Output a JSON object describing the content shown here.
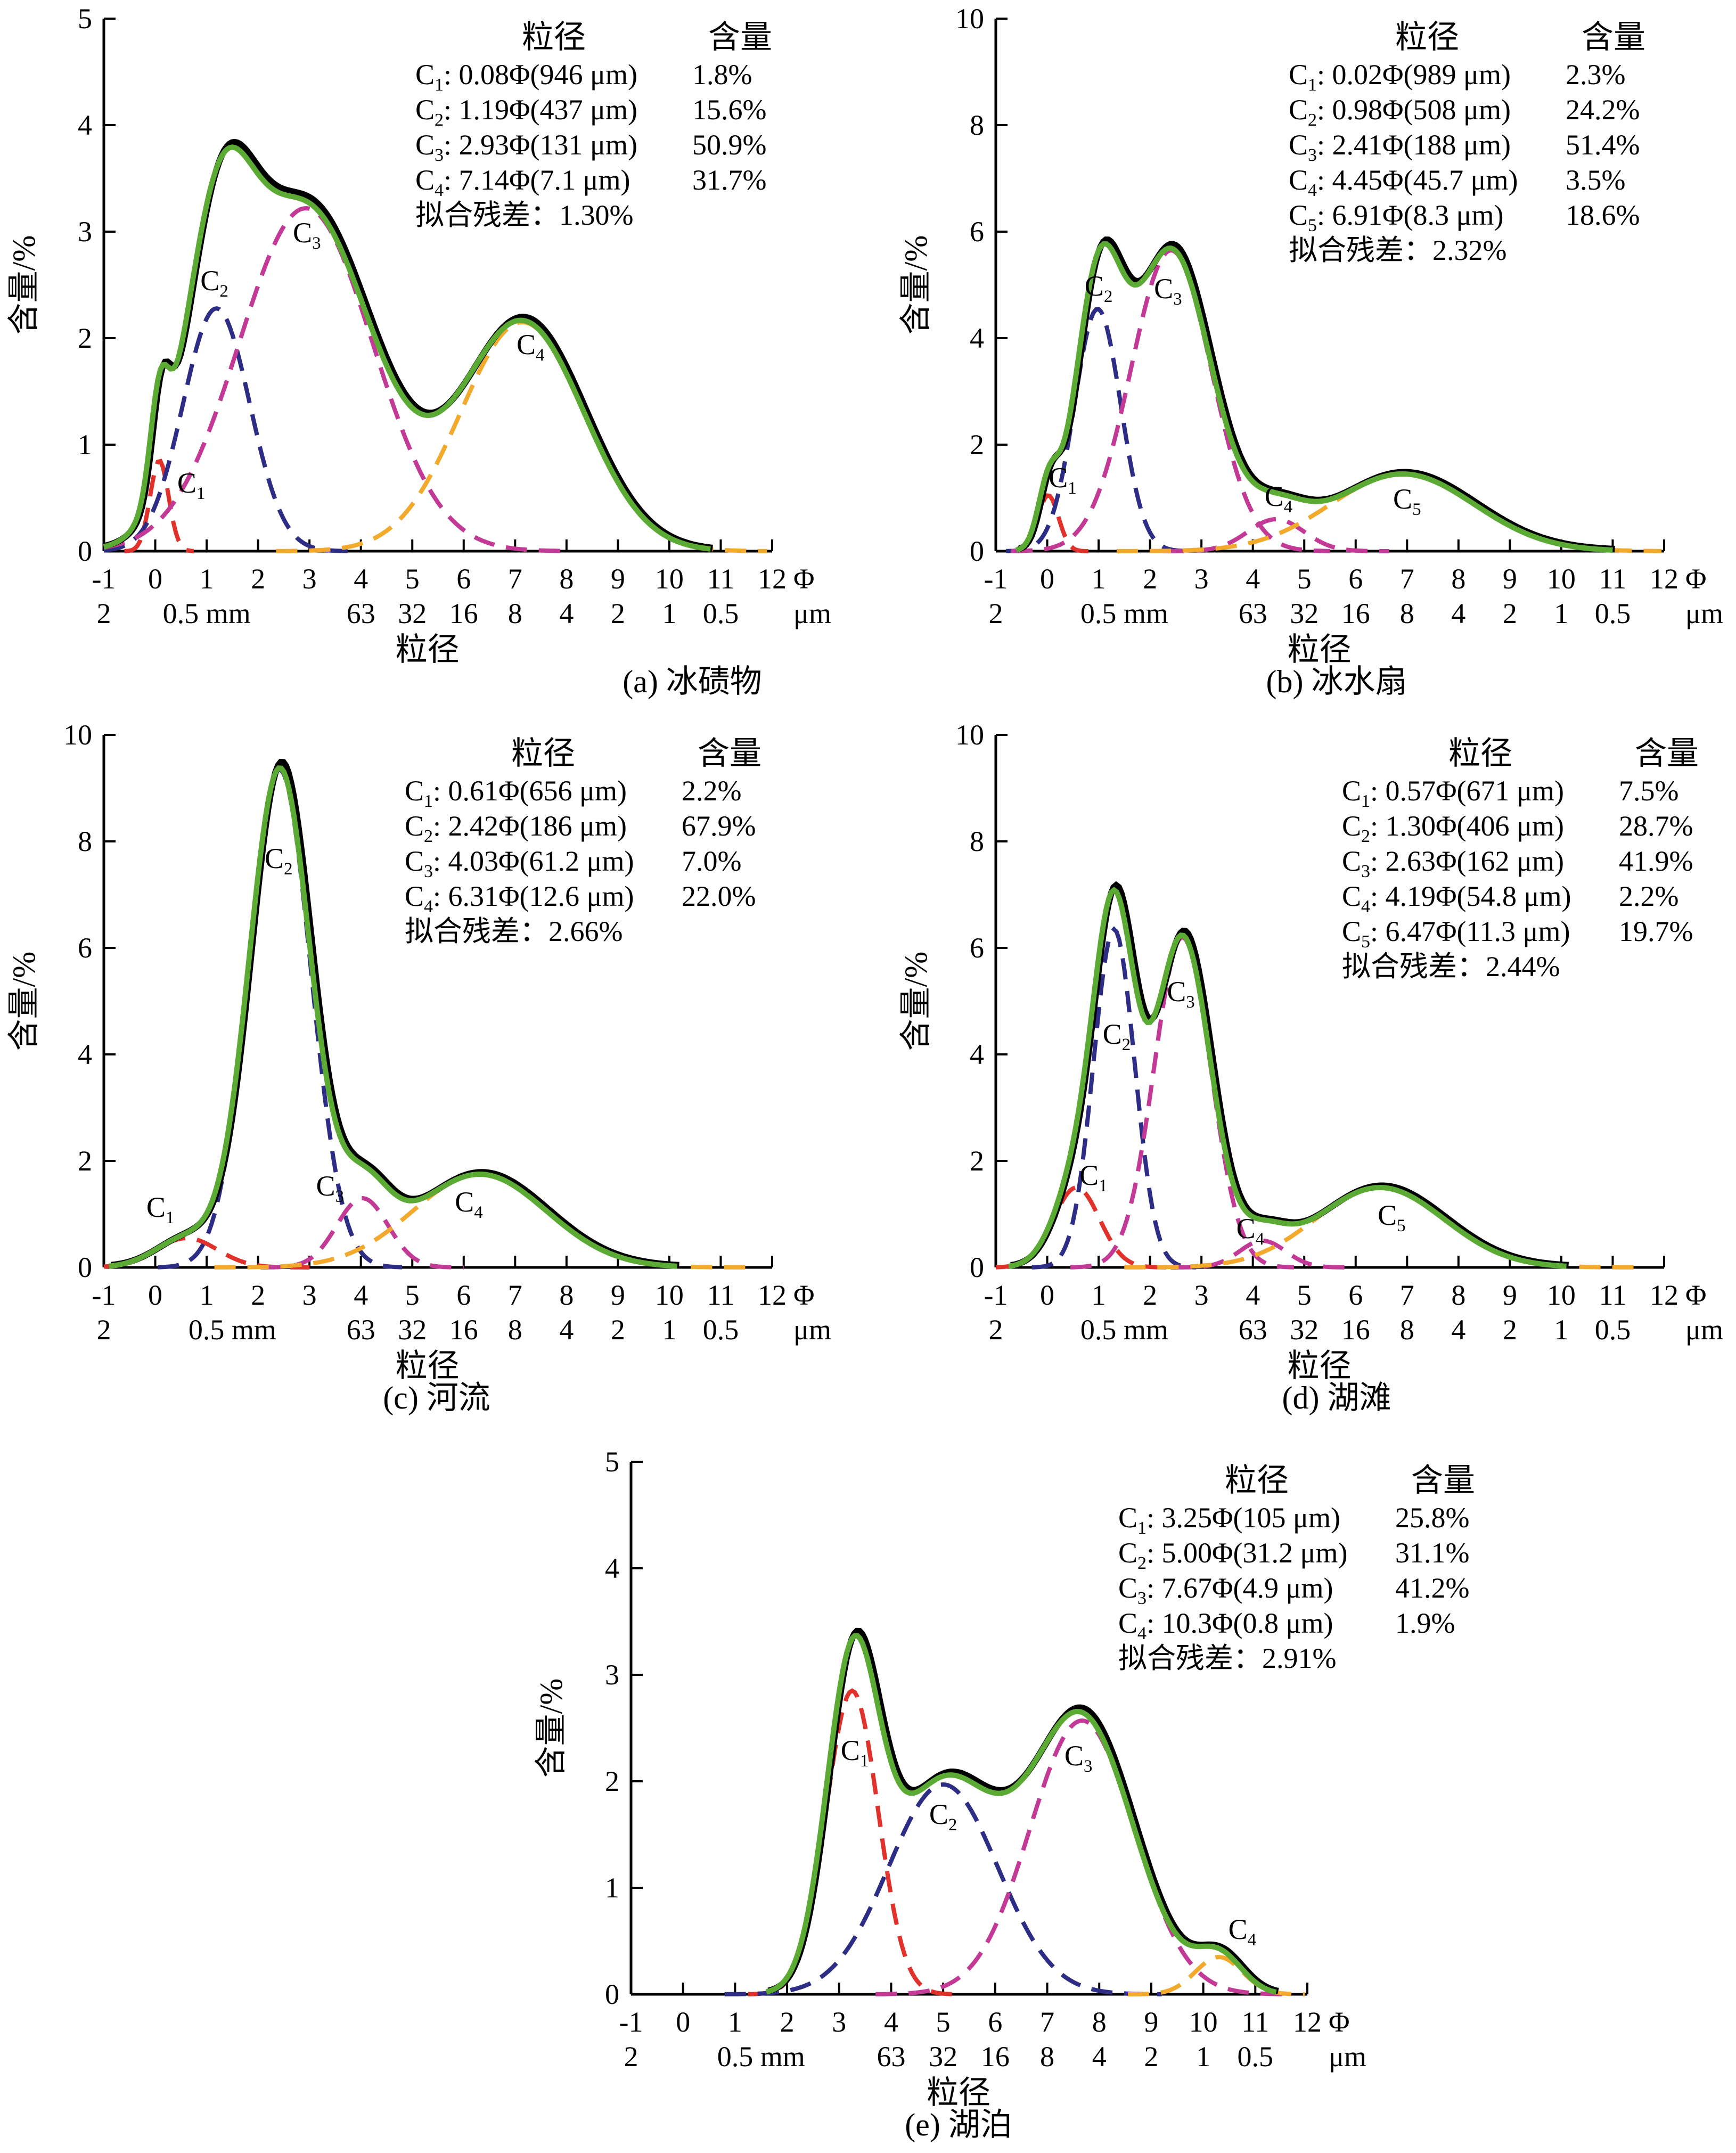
{
  "colors": {
    "measured": "#000000",
    "fitted": "#5aaa33",
    "c_red": "#e0312b",
    "c_blue": "#2e2d86",
    "c_magenta": "#c23a95",
    "c_orange": "#f2a92c"
  },
  "chart_data": [
    {
      "id": "a",
      "type": "line",
      "caption": "(a) 冰碛物",
      "ylabel": "含量/%",
      "xlabel": "粒径",
      "xlim": [
        -1,
        12
      ],
      "ylim": [
        0,
        5
      ],
      "xticks": [
        "-1",
        "0",
        "1",
        "2",
        "3",
        "4",
        "5",
        "6",
        "7",
        "8",
        "9",
        "10",
        "11",
        "12"
      ],
      "yticks": [
        "0",
        "1",
        "2",
        "3",
        "4",
        "5"
      ],
      "x_unit_phi": "Φ",
      "um_ticks": [
        {
          "x": -1,
          "t": "2"
        },
        {
          "x": 1,
          "t": "0.5 mm"
        },
        {
          "x": 4,
          "t": "63"
        },
        {
          "x": 5,
          "t": "32"
        },
        {
          "x": 6,
          "t": "16"
        },
        {
          "x": 7,
          "t": "8"
        },
        {
          "x": 8,
          "t": "4"
        },
        {
          "x": 9,
          "t": "2"
        },
        {
          "x": 10,
          "t": "1"
        },
        {
          "x": 11,
          "t": "0.5"
        }
      ],
      "x_unit_um": "μm",
      "legend_header": {
        "size": "粒径",
        "content": "含量"
      },
      "components": [
        {
          "label": "C1",
          "sub": "1",
          "size_text": ": 0.08Φ(946 μm)",
          "content": "1.8%",
          "mu": 0.08,
          "sigma": 0.18,
          "peak": 0.85,
          "color": "c_red",
          "lx": 0.7,
          "ly": 0.55
        },
        {
          "label": "C2",
          "sub": "2",
          "size_text": ": 1.19Φ(437 μm)",
          "content": "15.6%",
          "mu": 1.19,
          "sigma": 0.65,
          "peak": 2.28,
          "color": "c_blue",
          "lx": 1.15,
          "ly": 2.45
        },
        {
          "label": "C3",
          "sub": "3",
          "size_text": ": 2.93Φ(131 μm)",
          "content": "50.9%",
          "mu": 2.93,
          "sigma": 1.3,
          "peak": 3.22,
          "color": "c_magenta",
          "lx": 2.95,
          "ly": 2.9
        },
        {
          "label": "C4",
          "sub": "4",
          "size_text": ": 7.14Φ(7.1 μm)",
          "content": "31.7%",
          "mu": 7.14,
          "sigma": 1.2,
          "peak": 2.15,
          "color": "c_orange",
          "lx": 7.3,
          "ly": 1.85
        }
      ],
      "residual_label": "拟合残差",
      "residual_value": "1.30%"
    },
    {
      "id": "b",
      "type": "line",
      "caption": "(b) 冰水扇",
      "ylabel": "含量/%",
      "xlabel": "粒径",
      "xlim": [
        -1,
        12
      ],
      "ylim": [
        0,
        10
      ],
      "xticks": [
        "-1",
        "0",
        "1",
        "2",
        "3",
        "4",
        "5",
        "6",
        "7",
        "8",
        "9",
        "10",
        "11",
        "12"
      ],
      "yticks": [
        "0",
        "2",
        "4",
        "6",
        "8",
        "10"
      ],
      "x_unit_phi": "Φ",
      "um_ticks": [
        {
          "x": -1,
          "t": "2"
        },
        {
          "x": 1.5,
          "t": "0.5 mm"
        },
        {
          "x": 4,
          "t": "63"
        },
        {
          "x": 5,
          "t": "32"
        },
        {
          "x": 6,
          "t": "16"
        },
        {
          "x": 7,
          "t": "8"
        },
        {
          "x": 8,
          "t": "4"
        },
        {
          "x": 9,
          "t": "2"
        },
        {
          "x": 10,
          "t": "1"
        },
        {
          "x": 11,
          "t": "0.5"
        }
      ],
      "x_unit_um": "μm",
      "legend_header": {
        "size": "粒径",
        "content": "含量"
      },
      "components": [
        {
          "label": "C1",
          "sub": "1",
          "size_text": ": 0.02Φ(989 μm)",
          "content": "2.3%",
          "mu": 0.02,
          "sigma": 0.2,
          "peak": 1.05,
          "color": "c_red",
          "lx": 0.3,
          "ly": 1.2
        },
        {
          "label": "C2",
          "sub": "2",
          "size_text": ": 0.98Φ(508 μm)",
          "content": "24.2%",
          "mu": 0.98,
          "sigma": 0.45,
          "peak": 4.55,
          "color": "c_blue",
          "lx": 1.0,
          "ly": 4.8
        },
        {
          "label": "C3",
          "sub": "3",
          "size_text": ": 2.41Φ(188 μm)",
          "content": "51.4%",
          "mu": 2.41,
          "sigma": 0.78,
          "peak": 5.65,
          "color": "c_magenta",
          "lx": 2.35,
          "ly": 4.75
        },
        {
          "label": "C4",
          "sub": "4",
          "size_text": ": 4.45Φ(45.7 μm)",
          "content": "3.5%",
          "mu": 4.45,
          "sigma": 0.55,
          "peak": 0.6,
          "color": "c_orange_m",
          "lx": 4.5,
          "ly": 0.85
        },
        {
          "label": "C5",
          "sub": "5",
          "size_text": ": 6.91Φ(8.3 μm)",
          "content": "18.6%",
          "mu": 6.91,
          "sigma": 1.4,
          "peak": 1.45,
          "color": "c_orange",
          "lx": 7.0,
          "ly": 0.8
        }
      ],
      "residual_label": "拟合残差",
      "residual_value": "2.32%"
    },
    {
      "id": "c",
      "type": "line",
      "caption": "(c) 河流",
      "ylabel": "含量/%",
      "xlabel": "粒径",
      "xlim": [
        -1,
        12
      ],
      "ylim": [
        0,
        10
      ],
      "xticks": [
        "-1",
        "0",
        "1",
        "2",
        "3",
        "4",
        "5",
        "6",
        "7",
        "8",
        "9",
        "10",
        "11",
        "12"
      ],
      "yticks": [
        "0",
        "2",
        "4",
        "6",
        "8",
        "10"
      ],
      "x_unit_phi": "Φ",
      "um_ticks": [
        {
          "x": -1,
          "t": "2"
        },
        {
          "x": 1.5,
          "t": "0.5 mm"
        },
        {
          "x": 4,
          "t": "63"
        },
        {
          "x": 5,
          "t": "32"
        },
        {
          "x": 6,
          "t": "16"
        },
        {
          "x": 7,
          "t": "8"
        },
        {
          "x": 8,
          "t": "4"
        },
        {
          "x": 9,
          "t": "2"
        },
        {
          "x": 10,
          "t": "1"
        },
        {
          "x": 11,
          "t": "0.5"
        }
      ],
      "x_unit_um": "μm",
      "legend_header": {
        "size": "粒径",
        "content": "含量"
      },
      "components": [
        {
          "label": "C1",
          "sub": "1",
          "size_text": ": 0.61Φ(656 μm)",
          "content": "2.2%",
          "mu": 0.61,
          "sigma": 0.6,
          "peak": 0.55,
          "color": "c_red",
          "lx": 0.1,
          "ly": 0.95
        },
        {
          "label": "C2",
          "sub": "2",
          "size_text": ": 2.42Φ(186 μm)",
          "content": "67.9%",
          "mu": 2.42,
          "sigma": 0.6,
          "peak": 9.35,
          "color": "c_blue",
          "lx": 2.4,
          "ly": 7.5
        },
        {
          "label": "C3",
          "sub": "3",
          "size_text": ": 4.03Φ(61.2 μm)",
          "content": "7.0%",
          "mu": 4.03,
          "sigma": 0.5,
          "peak": 1.3,
          "color": "c_magenta",
          "lx": 3.4,
          "ly": 1.35
        },
        {
          "label": "C4",
          "sub": "4",
          "size_text": ": 6.31Φ(12.6 μm)",
          "content": "22.0%",
          "mu": 6.31,
          "sigma": 1.3,
          "peak": 1.75,
          "color": "c_orange",
          "lx": 6.1,
          "ly": 1.05
        }
      ],
      "residual_label": "拟合残差",
      "residual_value": "2.66%"
    },
    {
      "id": "d",
      "type": "line",
      "caption": "(d) 湖滩",
      "ylabel": "含量/%",
      "xlabel": "粒径",
      "xlim": [
        -1,
        12
      ],
      "ylim": [
        0,
        10
      ],
      "xticks": [
        "-1",
        "0",
        "1",
        "2",
        "3",
        "4",
        "5",
        "6",
        "7",
        "8",
        "9",
        "10",
        "11",
        "12"
      ],
      "yticks": [
        "0",
        "2",
        "4",
        "6",
        "8",
        "10"
      ],
      "x_unit_phi": "Φ",
      "um_ticks": [
        {
          "x": -1,
          "t": "2"
        },
        {
          "x": 1.5,
          "t": "0.5 mm"
        },
        {
          "x": 4,
          "t": "63"
        },
        {
          "x": 5,
          "t": "32"
        },
        {
          "x": 6,
          "t": "16"
        },
        {
          "x": 7,
          "t": "8"
        },
        {
          "x": 8,
          "t": "4"
        },
        {
          "x": 9,
          "t": "2"
        },
        {
          "x": 10,
          "t": "1"
        },
        {
          "x": 11,
          "t": "0.5"
        }
      ],
      "x_unit_um": "μm",
      "legend_header": {
        "size": "粒径",
        "content": "含量"
      },
      "components": [
        {
          "label": "C1",
          "sub": "1",
          "size_text": ": 0.57Φ(671 μm)",
          "content": "7.5%",
          "mu": 0.57,
          "sigma": 0.45,
          "peak": 1.5,
          "color": "c_red",
          "lx": 0.9,
          "ly": 1.55
        },
        {
          "label": "C2",
          "sub": "2",
          "size_text": ": 1.30Φ(406 μm)",
          "content": "28.7%",
          "mu": 1.3,
          "sigma": 0.4,
          "peak": 6.35,
          "color": "c_blue",
          "lx": 1.35,
          "ly": 4.2
        },
        {
          "label": "C3",
          "sub": "3",
          "size_text": ": 2.63Φ(162 μm)",
          "content": "41.9%",
          "mu": 2.63,
          "sigma": 0.55,
          "peak": 6.2,
          "color": "c_magenta",
          "lx": 2.6,
          "ly": 5.0
        },
        {
          "label": "C4",
          "sub": "4",
          "size_text": ": 4.19Φ(54.8 μm)",
          "content": "2.2%",
          "mu": 4.19,
          "sigma": 0.45,
          "peak": 0.5,
          "color": "c_magenta",
          "lx": 3.95,
          "ly": 0.55
        },
        {
          "label": "C5",
          "sub": "5",
          "size_text": ": 6.47Φ(11.3 μm)",
          "content": "19.7%",
          "mu": 6.47,
          "sigma": 1.25,
          "peak": 1.5,
          "color": "c_orange",
          "lx": 6.7,
          "ly": 0.8
        }
      ],
      "residual_label": "拟合残差",
      "residual_value": "2.44%"
    },
    {
      "id": "e",
      "type": "line",
      "caption": "(e) 湖泊",
      "ylabel": "含量/%",
      "xlabel": "粒径",
      "xlim": [
        -1,
        12
      ],
      "ylim": [
        0,
        5
      ],
      "xticks": [
        "-1",
        "0",
        "1",
        "2",
        "3",
        "4",
        "5",
        "6",
        "7",
        "8",
        "9",
        "10",
        "11",
        "12"
      ],
      "yticks": [
        "0",
        "1",
        "2",
        "3",
        "4",
        "5"
      ],
      "x_unit_phi": "Φ",
      "um_ticks": [
        {
          "x": -1,
          "t": "2"
        },
        {
          "x": 1.5,
          "t": "0.5 mm"
        },
        {
          "x": 4,
          "t": "63"
        },
        {
          "x": 5,
          "t": "32"
        },
        {
          "x": 6,
          "t": "16"
        },
        {
          "x": 7,
          "t": "8"
        },
        {
          "x": 8,
          "t": "4"
        },
        {
          "x": 9,
          "t": "2"
        },
        {
          "x": 10,
          "t": "1"
        },
        {
          "x": 11,
          "t": "0.5"
        }
      ],
      "x_unit_um": "μm",
      "legend_header": {
        "size": "粒径",
        "content": "含量"
      },
      "components": [
        {
          "label": "C1",
          "sub": "1",
          "size_text": ": 3.25Φ(105 μm)",
          "content": "25.8%",
          "mu": 3.25,
          "sigma": 0.5,
          "peak": 2.85,
          "color": "c_red",
          "lx": 3.3,
          "ly": 2.2
        },
        {
          "label": "C2",
          "sub": "2",
          "size_text": ": 5.00Φ(31.2 μm)",
          "content": "31.1%",
          "mu": 5.0,
          "sigma": 1.05,
          "peak": 1.97,
          "color": "c_blue",
          "lx": 5.0,
          "ly": 1.6
        },
        {
          "label": "C3",
          "sub": "3",
          "size_text": ": 7.67Φ(4.9 μm)",
          "content": "41.2%",
          "mu": 7.67,
          "sigma": 1.0,
          "peak": 2.57,
          "color": "c_magenta",
          "lx": 7.6,
          "ly": 2.15
        },
        {
          "label": "C4",
          "sub": "4",
          "size_text": ": 10.3Φ(0.8 μm)",
          "content": "1.9%",
          "mu": 10.3,
          "sigma": 0.45,
          "peak": 0.35,
          "color": "c_orange",
          "lx": 10.75,
          "ly": 0.52
        }
      ],
      "residual_label": "拟合残差",
      "residual_value": "2.91%"
    }
  ]
}
